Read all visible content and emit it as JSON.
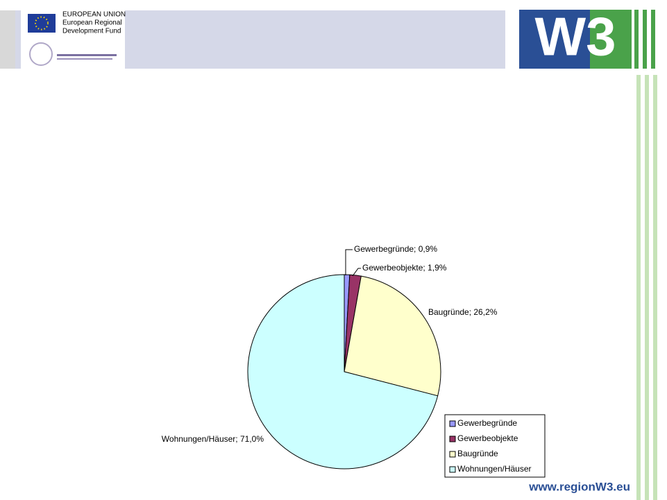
{
  "header": {
    "eu_title": "EUROPEAN UNION",
    "eu_line1": "European Regional",
    "eu_line2": "Development Fund",
    "logo": "W3"
  },
  "footer": {
    "url": "www.regionW3.eu"
  },
  "chart_data": {
    "type": "pie",
    "categories": [
      "Gewerbegründe",
      "Gewerbeobjekte",
      "Baugründe",
      "Wohnungen/Häuser"
    ],
    "values": [
      0.9,
      1.9,
      26.2,
      71.0
    ],
    "value_labels": [
      "Gewerbegründe; 0,9%",
      "Gewerbeobjekte; 1,9%",
      "Baugründe; 26,2%",
      "Wohnungen/Häuser; 71,0%"
    ],
    "colors": [
      "#9999ff",
      "#993366",
      "#ffffcc",
      "#ccffff"
    ],
    "legend": "bottom-right"
  }
}
